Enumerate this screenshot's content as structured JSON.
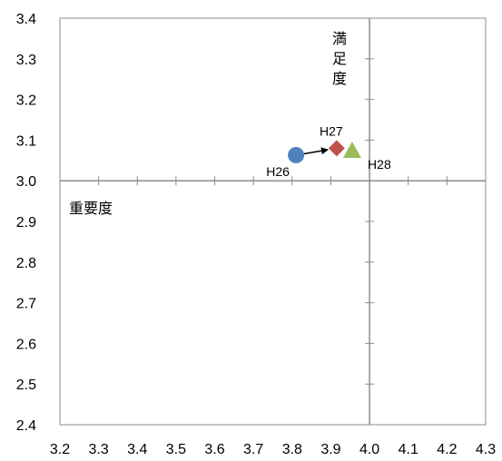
{
  "chart_data": {
    "type": "scatter",
    "xlim": [
      3.2,
      4.3
    ],
    "ylim": [
      2.4,
      3.4
    ],
    "x_ticks": [
      "3.2",
      "3.3",
      "3.4",
      "3.5",
      "3.6",
      "3.7",
      "3.8",
      "3.9",
      "4.0",
      "4.1",
      "4.2",
      "4.3"
    ],
    "y_ticks": [
      "2.4",
      "2.5",
      "2.6",
      "2.7",
      "2.8",
      "2.9",
      "3.0",
      "3.1",
      "3.2",
      "3.3",
      "3.4"
    ],
    "cross_axes": {
      "x": 4.0,
      "y": 3.0
    },
    "x_axis_name": "重要度",
    "y_axis_name": [
      "満",
      "足",
      "度"
    ],
    "grid": false,
    "points": [
      {
        "label": "H26",
        "x": 3.81,
        "y": 3.063,
        "marker": "circle",
        "color": "#4f81bd"
      },
      {
        "label": "H27",
        "x": 3.915,
        "y": 3.08,
        "marker": "diamond",
        "color": "#c0504d"
      },
      {
        "label": "H28",
        "x": 3.955,
        "y": 3.074,
        "marker": "triangle",
        "color": "#9bbb59"
      }
    ],
    "arrow": {
      "from": "H26",
      "to": "H27",
      "color": "#000000"
    }
  }
}
